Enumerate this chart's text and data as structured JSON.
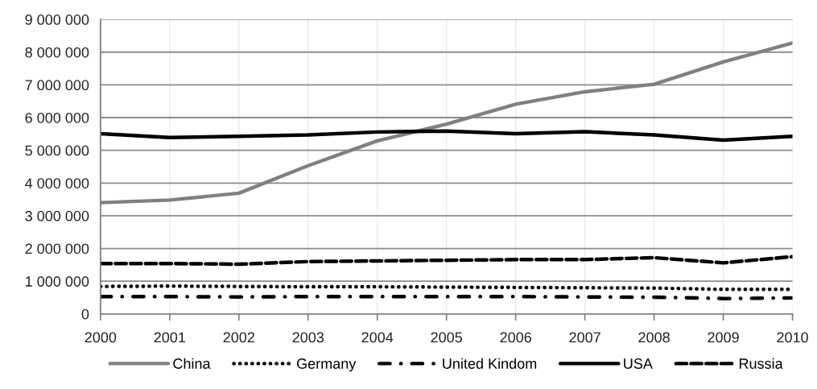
{
  "chart_data": {
    "type": "line",
    "x": [
      2000,
      2001,
      2002,
      2003,
      2004,
      2005,
      2006,
      2007,
      2008,
      2009,
      2010
    ],
    "xlim": [
      2000,
      2010
    ],
    "xticks": [
      2000,
      2001,
      2002,
      2003,
      2004,
      2005,
      2006,
      2007,
      2008,
      2009,
      2010
    ],
    "ylim": [
      0,
      9000000
    ],
    "yticks": [
      {
        "value": 0,
        "label": "0"
      },
      {
        "value": 1000000,
        "label": "1 000 000"
      },
      {
        "value": 2000000,
        "label": "2 000 000"
      },
      {
        "value": 3000000,
        "label": "3 000 000"
      },
      {
        "value": 4000000,
        "label": "4 000 000"
      },
      {
        "value": 5000000,
        "label": "5 000 000"
      },
      {
        "value": 6000000,
        "label": "6 000 000"
      },
      {
        "value": 7000000,
        "label": "7 000 000"
      },
      {
        "value": 8000000,
        "label": "8 000 000"
      },
      {
        "value": 9000000,
        "label": "9 000 000"
      }
    ],
    "grid": true,
    "legend": "bottom",
    "marker": "none",
    "series": [
      {
        "name": "China",
        "color": "#808080",
        "line_style": "solid",
        "values": [
          3400000,
          3480000,
          3690000,
          4530000,
          5290000,
          5800000,
          6410000,
          6790000,
          7020000,
          7700000,
          8280000
        ]
      },
      {
        "name": "Germany",
        "color": "#000000",
        "line_style": "dotted",
        "values": [
          840000,
          850000,
          840000,
          830000,
          830000,
          820000,
          810000,
          800000,
          790000,
          750000,
          750000
        ]
      },
      {
        "name": "United Kindom",
        "color": "#000000",
        "line_style": "dashdot",
        "values": [
          530000,
          530000,
          520000,
          530000,
          530000,
          530000,
          530000,
          520000,
          510000,
          470000,
          490000
        ]
      },
      {
        "name": "USA",
        "color": "#000000",
        "line_style": "solid",
        "values": [
          5510000,
          5390000,
          5430000,
          5470000,
          5560000,
          5590000,
          5510000,
          5570000,
          5470000,
          5310000,
          5430000
        ]
      },
      {
        "name": "Russia",
        "color": "#000000",
        "line_style": "dashed",
        "values": [
          1540000,
          1540000,
          1520000,
          1600000,
          1620000,
          1640000,
          1660000,
          1660000,
          1720000,
          1560000,
          1750000
        ]
      }
    ]
  }
}
